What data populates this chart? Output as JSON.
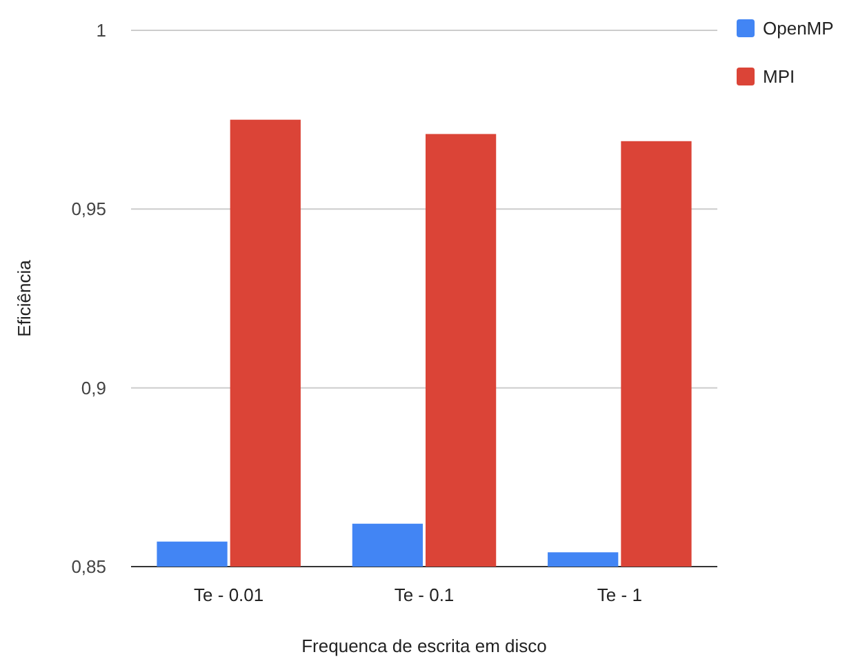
{
  "chart_data": {
    "type": "bar",
    "xlabel": "Frequenca de escrita em disco",
    "ylabel": "Eficiência",
    "categories": [
      "Te - 0.01",
      "Te - 0.1",
      "Te - 1"
    ],
    "series": [
      {
        "name": "OpenMP",
        "color": "#4285f4",
        "values": [
          0.857,
          0.862,
          0.854
        ]
      },
      {
        "name": "MPI",
        "color": "#db4437",
        "values": [
          0.975,
          0.971,
          0.969
        ]
      }
    ],
    "ylim": [
      0.85,
      1
    ],
    "yticks": [
      {
        "value": 0.85,
        "label": "0,85"
      },
      {
        "value": 0.9,
        "label": "0,9"
      },
      {
        "value": 0.95,
        "label": "0,95"
      },
      {
        "value": 1,
        "label": "1"
      }
    ],
    "grid": "y",
    "legend": "top right"
  }
}
